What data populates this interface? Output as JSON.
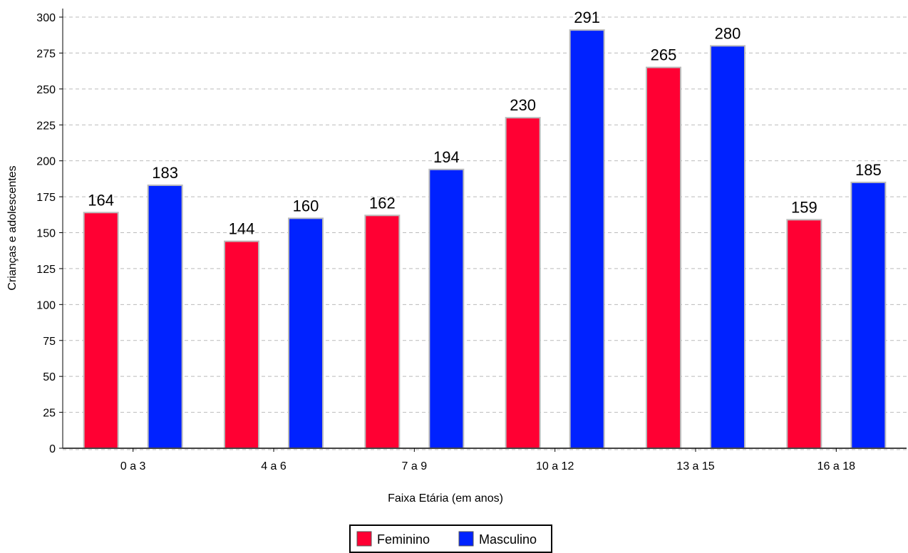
{
  "chart_data": {
    "type": "bar",
    "categories": [
      "0 a 3",
      "4 a 6",
      "7 a 9",
      "10 a 12",
      "13 a 15",
      "16 a 18"
    ],
    "series": [
      {
        "name": "Feminino",
        "values": [
          164,
          144,
          162,
          230,
          265,
          159
        ],
        "color": "#ff0033"
      },
      {
        "name": "Masculino",
        "values": [
          183,
          160,
          194,
          291,
          280,
          185
        ],
        "color": "#0022ff"
      }
    ],
    "title": "",
    "xlabel": "Faixa Etária (em anos)",
    "ylabel": "Crianças e adolescentes",
    "ylim": [
      0,
      300
    ],
    "yticks": [
      0,
      25,
      50,
      75,
      100,
      125,
      150,
      175,
      200,
      225,
      250,
      275,
      300
    ],
    "grid": true,
    "legend_position": "bottom-center",
    "bar_border_color": "#bbbbbb",
    "grid_color": "#bbbbbb"
  }
}
